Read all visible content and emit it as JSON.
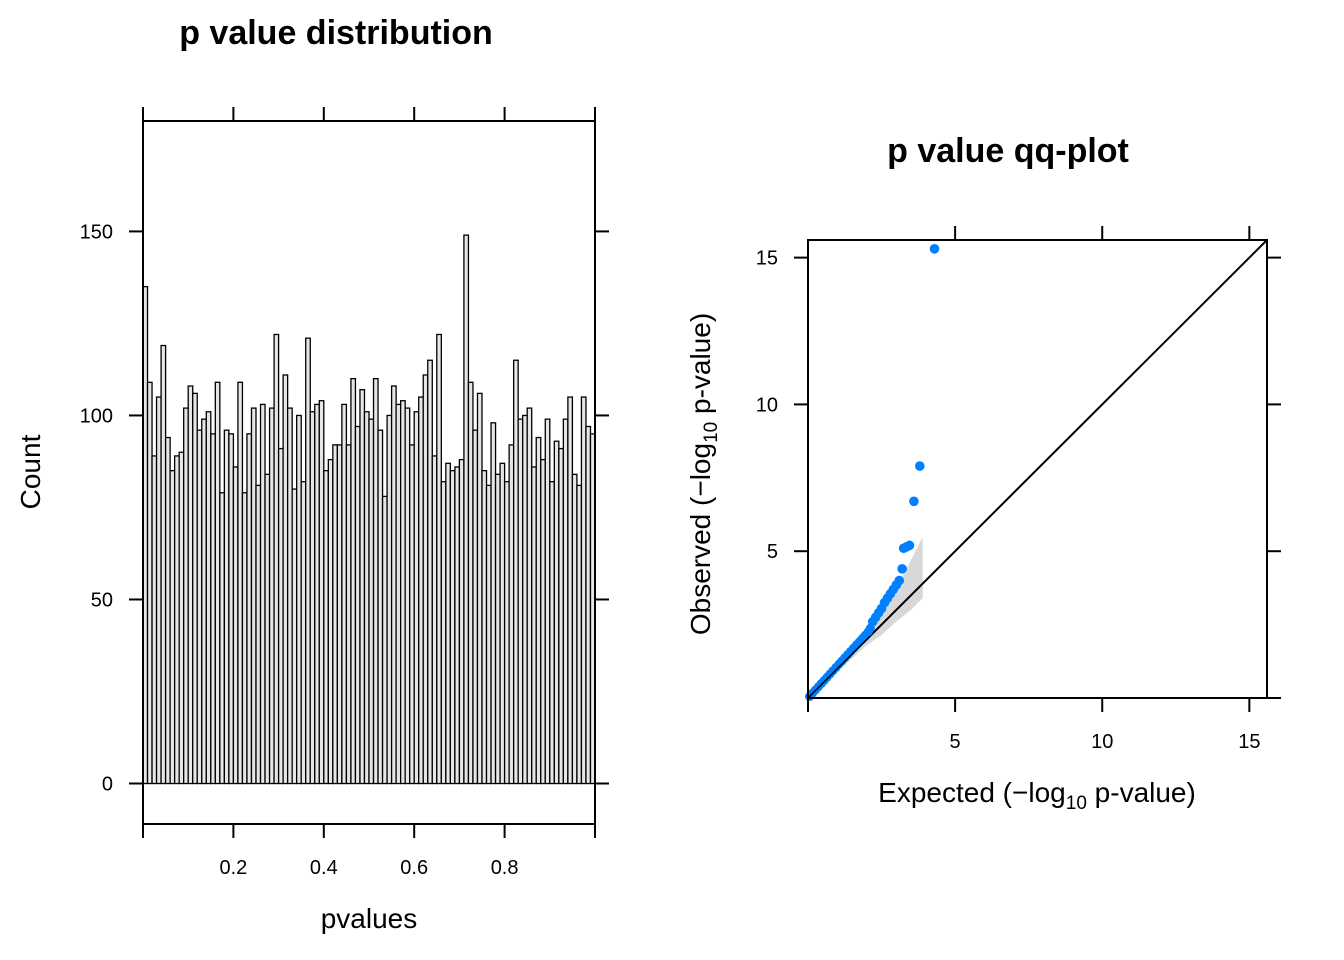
{
  "chart_data": [
    {
      "type": "bar",
      "title": "p value distribution",
      "xlabel": "pvalues",
      "ylabel": "Count",
      "xlim": [
        0,
        1
      ],
      "ylim": [
        -11,
        180
      ],
      "xticks": [
        "0.2",
        "0.4",
        "0.6",
        "0.8"
      ],
      "xtick_values": [
        0.2,
        0.4,
        0.6,
        0.8
      ],
      "yticks": [
        "0",
        "50",
        "100",
        "150"
      ],
      "ytick_values": [
        0,
        50,
        100,
        150
      ],
      "bin_width": 0.01,
      "values": [
        135,
        109,
        89,
        105,
        119,
        94,
        85,
        89,
        90,
        102,
        108,
        106,
        96,
        99,
        101,
        95,
        109,
        79,
        96,
        95,
        86,
        109,
        79,
        95,
        102,
        81,
        103,
        84,
        102,
        122,
        91,
        111,
        102,
        80,
        100,
        82,
        121,
        101,
        103,
        104,
        85,
        88,
        92,
        92,
        103,
        92,
        110,
        97,
        107,
        101,
        99,
        110,
        96,
        78,
        100,
        108,
        103,
        104,
        102,
        92,
        101,
        105,
        111,
        115,
        89,
        122,
        82,
        87,
        85,
        86,
        88,
        149,
        109,
        96,
        106,
        85,
        81,
        98,
        84,
        87,
        82,
        92,
        115,
        99,
        100,
        102,
        86,
        94,
        88,
        99,
        82,
        93,
        91,
        99,
        105,
        84,
        81,
        105,
        97,
        95
      ]
    },
    {
      "type": "scatter",
      "title": "p value qq-plot",
      "xlabel": {
        "pre": "Expected (",
        "minus": "−",
        "log": "log",
        "sub": "10",
        "post": " p-value)"
      },
      "ylabel": {
        "pre": "Observed (",
        "minus": "−",
        "log": "log",
        "sub": "10",
        "post": " p-value)"
      },
      "xlim": [
        0,
        15.6
      ],
      "ylim": [
        0,
        15.6
      ],
      "xticks": [
        "5",
        "10",
        "15"
      ],
      "xtick_values": [
        5,
        10,
        15
      ],
      "yticks": [
        "5",
        "10",
        "15"
      ],
      "ytick_values": [
        5,
        10,
        15
      ],
      "point_color": "#0080ff",
      "band_color": "#d8d8d8",
      "reference_line": [
        [
          0,
          0
        ],
        [
          15.6,
          15.6
        ]
      ],
      "band_upper": [
        [
          0,
          0
        ],
        [
          1,
          1.12
        ],
        [
          2,
          2.3
        ],
        [
          2.5,
          2.95
        ],
        [
          3,
          3.7
        ],
        [
          3.5,
          4.7
        ],
        [
          3.9,
          5.5
        ]
      ],
      "band_lower": [
        [
          0,
          0
        ],
        [
          1,
          0.9
        ],
        [
          2,
          1.8
        ],
        [
          2.5,
          2.15
        ],
        [
          3,
          2.6
        ],
        [
          3.5,
          3.0
        ],
        [
          3.9,
          3.4
        ]
      ],
      "outliers": [
        [
          4.3,
          15.3
        ],
        [
          3.8,
          7.9
        ],
        [
          3.6,
          6.7
        ],
        [
          3.45,
          5.2
        ],
        [
          3.35,
          5.15
        ],
        [
          3.25,
          5.1
        ],
        [
          3.2,
          4.4
        ],
        [
          3.1,
          4.0
        ],
        [
          3.0,
          3.85
        ],
        [
          2.9,
          3.7
        ],
        [
          2.8,
          3.55
        ],
        [
          2.7,
          3.4
        ],
        [
          2.6,
          3.25
        ],
        [
          2.5,
          3.05
        ],
        [
          2.4,
          2.9
        ],
        [
          2.3,
          2.75
        ],
        [
          2.2,
          2.6
        ]
      ],
      "curve_points": [
        [
          0.05,
          0.05
        ],
        [
          0.15,
          0.16
        ],
        [
          0.25,
          0.27
        ],
        [
          0.35,
          0.38
        ],
        [
          0.45,
          0.49
        ],
        [
          0.55,
          0.6
        ],
        [
          0.65,
          0.71
        ],
        [
          0.75,
          0.82
        ],
        [
          0.85,
          0.93
        ],
        [
          0.95,
          1.04
        ],
        [
          1.05,
          1.15
        ],
        [
          1.15,
          1.26
        ],
        [
          1.25,
          1.37
        ],
        [
          1.35,
          1.48
        ],
        [
          1.45,
          1.59
        ],
        [
          1.55,
          1.7
        ],
        [
          1.65,
          1.81
        ],
        [
          1.75,
          1.92
        ],
        [
          1.85,
          2.03
        ],
        [
          1.95,
          2.14
        ],
        [
          2.05,
          2.26
        ],
        [
          2.12,
          2.38
        ]
      ]
    }
  ]
}
